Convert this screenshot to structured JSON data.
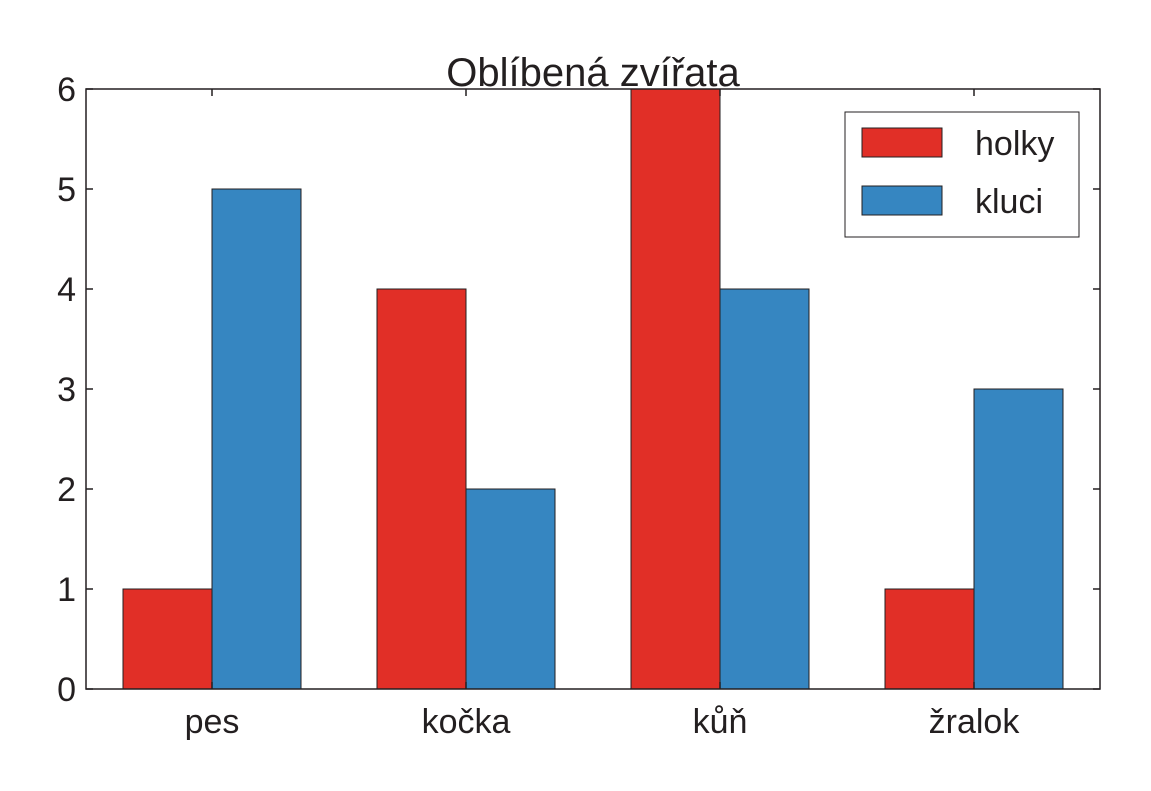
{
  "chart_data": {
    "type": "bar",
    "title": "Oblíbená zvířata",
    "xlabel": "",
    "ylabel": "",
    "categories": [
      "pes",
      "kočka",
      "kůň",
      "žralok"
    ],
    "series": [
      {
        "name": "holky",
        "values": [
          1,
          4,
          6,
          1
        ],
        "color": "#e12f27"
      },
      {
        "name": "kluci",
        "values": [
          5,
          2,
          4,
          3
        ],
        "color": "#3686c1"
      }
    ],
    "ylim": [
      0,
      6
    ],
    "yticks": [
      "0",
      "1",
      "2",
      "3",
      "4",
      "5",
      "6"
    ],
    "grid": false,
    "legend_position": "top-right"
  }
}
